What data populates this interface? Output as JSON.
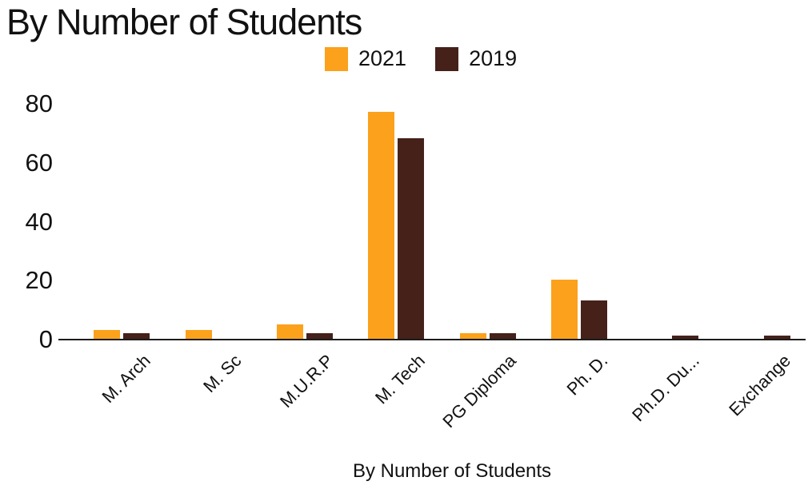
{
  "header": {
    "title": "By Number of Students"
  },
  "colors": {
    "series_2021": "#FBA11B",
    "series_2019": "#45211A",
    "text": "#111111",
    "axis_line": "#1C1C1C",
    "background": "#FFFFFF"
  },
  "chart_data": {
    "type": "bar",
    "title": "By Number of Students",
    "xlabel": "By Number of Students",
    "ylabel": "",
    "categories": [
      "M. Arch",
      "M. Sc",
      "M.U.R.P",
      "M. Tech",
      "PG Diploma",
      "Ph. D.",
      "Ph.D. Du...",
      "Exchange"
    ],
    "series": [
      {
        "name": "2021",
        "color": "#FBA11B",
        "values": [
          3,
          3,
          5,
          77,
          2,
          20,
          0,
          0
        ]
      },
      {
        "name": "2019",
        "color": "#45211A",
        "values": [
          2,
          0,
          2,
          68,
          2,
          13,
          1,
          1
        ]
      }
    ],
    "yticks": [
      0,
      20,
      40,
      60,
      80
    ],
    "ylim": [
      0,
      83
    ],
    "grid": false,
    "legend_position": "top"
  }
}
